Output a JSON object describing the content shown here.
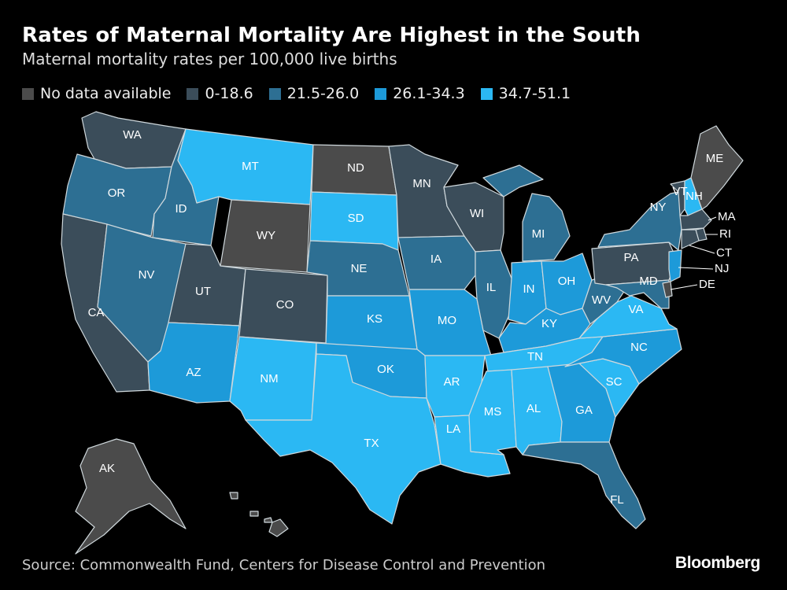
{
  "title": "Rates of Maternal Mortality Are Highest in the South",
  "subtitle": "Maternal mortality rates per 100,000 live births",
  "legend": [
    {
      "label": "No data available",
      "color": "#4b4b4b"
    },
    {
      "label": "0-18.6",
      "color": "#3b4d5a"
    },
    {
      "label": "21.5-26.0",
      "color": "#2d6f93"
    },
    {
      "label": "26.1-34.3",
      "color": "#1d9ad9"
    },
    {
      "label": "34.7-51.1",
      "color": "#2bb8f3"
    }
  ],
  "states": {
    "WA": {
      "category": 1
    },
    "OR": {
      "category": 2
    },
    "CA": {
      "category": 1
    },
    "ID": {
      "category": 2
    },
    "NV": {
      "category": 2
    },
    "MT": {
      "category": 4
    },
    "WY": {
      "category": 0
    },
    "UT": {
      "category": 1
    },
    "CO": {
      "category": 1
    },
    "AZ": {
      "category": 3
    },
    "NM": {
      "category": 4
    },
    "ND": {
      "category": 0
    },
    "SD": {
      "category": 4
    },
    "NE": {
      "category": 2
    },
    "KS": {
      "category": 3
    },
    "OK": {
      "category": 3
    },
    "TX": {
      "category": 4
    },
    "MN": {
      "category": 1
    },
    "IA": {
      "category": 2
    },
    "MO": {
      "category": 3
    },
    "AR": {
      "category": 4
    },
    "LA": {
      "category": 4
    },
    "WI": {
      "category": 1
    },
    "IL": {
      "category": 2
    },
    "MI": {
      "category": 2
    },
    "IN": {
      "category": 3
    },
    "OH": {
      "category": 3
    },
    "KY": {
      "category": 3
    },
    "TN": {
      "category": 4
    },
    "MS": {
      "category": 4
    },
    "AL": {
      "category": 4
    },
    "GA": {
      "category": 3
    },
    "FL": {
      "category": 2
    },
    "SC": {
      "category": 4
    },
    "NC": {
      "category": 3
    },
    "VA": {
      "category": 4
    },
    "WV": {
      "category": 2
    },
    "PA": {
      "category": 1
    },
    "NY": {
      "category": 2
    },
    "VT": {
      "category": 1
    },
    "NH": {
      "category": 4
    },
    "ME": {
      "category": 0
    },
    "MA": {
      "category": 1
    },
    "RI": {
      "category": 1
    },
    "CT": {
      "category": 1
    },
    "NJ": {
      "category": 3
    },
    "DE": {
      "category": 0
    },
    "MD": {
      "category": 2
    },
    "AK": {
      "category": 0
    },
    "HI": {
      "category": 0
    }
  },
  "source": "Source: Commonwealth Fund, Centers for Disease Control and Prevention",
  "brand": "Bloomberg"
}
